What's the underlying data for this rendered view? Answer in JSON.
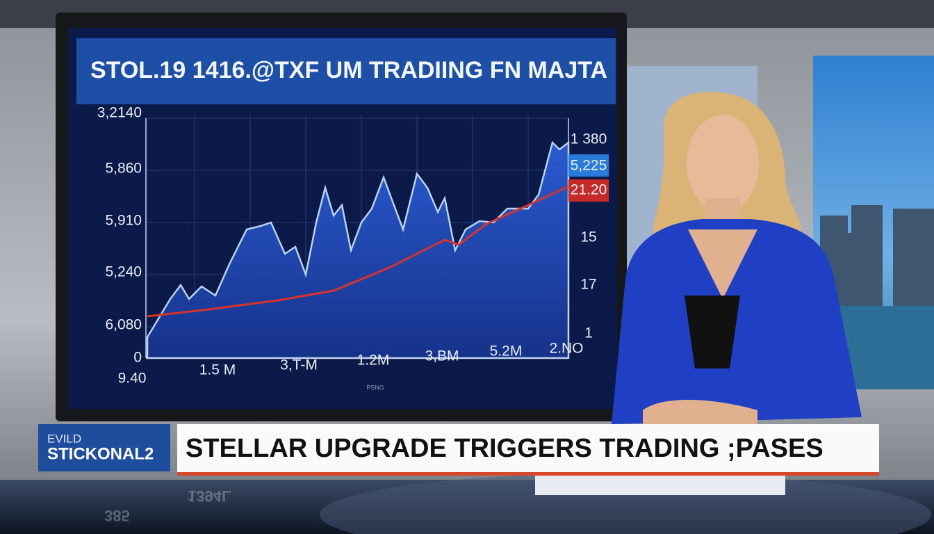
{
  "screen": {
    "title": "STOL.19 1416.@TXF UM TRADIING FN MAJTA",
    "y_labels": [
      "3,2140",
      "5,860",
      "5,910",
      "5,240",
      "6,080",
      "0"
    ],
    "x_labels": [
      "9.40",
      "1.5 M",
      "3,T-M",
      "1.2M",
      "3,BM",
      "5.2M",
      "2.NO"
    ],
    "right_labels": [
      "1 380",
      "5,225",
      "21.20",
      "15",
      "17",
      "1"
    ],
    "brand": "PSNG"
  },
  "lower_third": {
    "logo_line1": "EVILD",
    "logo_line2": "STICKONAL2",
    "headline": "STELLAR UPGRADE TRIGGERS TRADING ;PASES"
  },
  "reflection": [
    "1394L",
    "385"
  ]
}
